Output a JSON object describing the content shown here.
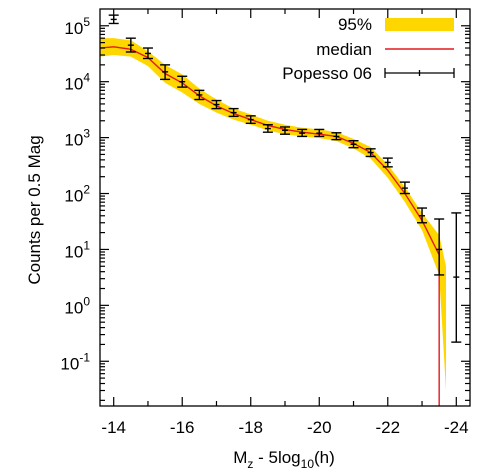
{
  "chart_data": {
    "type": "line",
    "xlabel": {
      "main": "M",
      "sub1": "z",
      "mid": " - 5log",
      "sub2": "10",
      "end": "(h)"
    },
    "ylabel": "Counts per 0.5 Mag",
    "xlim": [
      -13.6,
      -24.4
    ],
    "ylim_log10": [
      -1.8,
      5.3
    ],
    "y_scale": "log",
    "x_ticks": [
      -14,
      -16,
      -18,
      -20,
      -22,
      -24
    ],
    "x_tick_labels": [
      "-14",
      "-16",
      "-18",
      "-20",
      "-22",
      "-24"
    ],
    "y_ticks_exp": [
      -1,
      0,
      1,
      2,
      3,
      4,
      5
    ],
    "y_tick_labels": [
      {
        "base": "10",
        "exp": "-1"
      },
      {
        "base": "10",
        "exp": "0"
      },
      {
        "base": "10",
        "exp": "1"
      },
      {
        "base": "10",
        "exp": "2"
      },
      {
        "base": "10",
        "exp": "3"
      },
      {
        "base": "10",
        "exp": "4"
      },
      {
        "base": "10",
        "exp": "5"
      }
    ],
    "legend": {
      "placement": "top-right",
      "entries": [
        {
          "key": "band",
          "label": "95%"
        },
        {
          "key": "median",
          "label": "median"
        },
        {
          "key": "popesso",
          "label": "Popesso 06"
        }
      ]
    },
    "colors": {
      "band": "#FFD700",
      "median": "#E31A1C",
      "points": "#000000"
    },
    "band": {
      "x": [
        -13.6,
        -14.0,
        -14.5,
        -15.0,
        -15.5,
        -16.0,
        -16.5,
        -17.0,
        -17.5,
        -18.0,
        -18.5,
        -19.0,
        -19.5,
        -20.0,
        -20.5,
        -21.0,
        -21.5,
        -22.0,
        -22.5,
        -23.0,
        -23.5,
        -23.7
      ],
      "upper": [
        60000,
        60000,
        55000,
        35000,
        20000,
        13500,
        7500,
        4800,
        3300,
        2600,
        2000,
        1700,
        1500,
        1400,
        1250,
        950,
        680,
        330,
        130,
        45,
        18,
        5
      ],
      "lower": [
        28000,
        30000,
        28000,
        19000,
        9500,
        6400,
        4000,
        2800,
        2100,
        1700,
        1350,
        1150,
        1050,
        980,
        870,
        640,
        420,
        190,
        70,
        22,
        3.5,
        0.03
      ]
    },
    "median": {
      "x": [
        -13.6,
        -14.0,
        -14.5,
        -15.0,
        -15.5,
        -16.0,
        -16.5,
        -17.0,
        -17.5,
        -18.0,
        -18.5,
        -19.0,
        -19.5,
        -20.0,
        -20.5,
        -21.0,
        -21.5,
        -22.0,
        -22.5,
        -23.0,
        -23.5,
        -23.5
      ],
      "y": [
        40000,
        42000,
        38000,
        27000,
        14000,
        9500,
        5600,
        3700,
        2700,
        2100,
        1650,
        1400,
        1250,
        1150,
        1050,
        790,
        540,
        260,
        100,
        33,
        8,
        0.016
      ]
    },
    "points": [
      {
        "x": -14.0,
        "y": 130000,
        "ylo": 110000,
        "yhi": 155000
      },
      {
        "x": -14.5,
        "y": 45000,
        "ylo": 34000,
        "yhi": 60000
      },
      {
        "x": -15.0,
        "y": 32000,
        "ylo": 26000,
        "yhi": 40000
      },
      {
        "x": -15.5,
        "y": 15000,
        "ylo": 11000,
        "yhi": 20000
      },
      {
        "x": -16.0,
        "y": 10000,
        "ylo": 8000,
        "yhi": 12500
      },
      {
        "x": -16.5,
        "y": 5800,
        "ylo": 4800,
        "yhi": 7000
      },
      {
        "x": -17.0,
        "y": 3900,
        "ylo": 3300,
        "yhi": 4600
      },
      {
        "x": -17.5,
        "y": 2800,
        "ylo": 2400,
        "yhi": 3300
      },
      {
        "x": -18.0,
        "y": 2100,
        "ylo": 1800,
        "yhi": 2450
      },
      {
        "x": -18.5,
        "y": 1450,
        "ylo": 1250,
        "yhi": 1700
      },
      {
        "x": -19.0,
        "y": 1350,
        "ylo": 1150,
        "yhi": 1550
      },
      {
        "x": -19.5,
        "y": 1200,
        "ylo": 1050,
        "yhi": 1400
      },
      {
        "x": -20.0,
        "y": 1200,
        "ylo": 1050,
        "yhi": 1400
      },
      {
        "x": -20.5,
        "y": 1050,
        "ylo": 920,
        "yhi": 1220
      },
      {
        "x": -21.0,
        "y": 760,
        "ylo": 660,
        "yhi": 880
      },
      {
        "x": -21.5,
        "y": 540,
        "ylo": 460,
        "yhi": 630
      },
      {
        "x": -22.0,
        "y": 360,
        "ylo": 300,
        "yhi": 430
      },
      {
        "x": -22.5,
        "y": 125,
        "ylo": 100,
        "yhi": 160
      },
      {
        "x": -23.0,
        "y": 40,
        "ylo": 30,
        "yhi": 55
      },
      {
        "x": -23.5,
        "y": 10,
        "ylo": 3.5,
        "yhi": 35
      },
      {
        "x": -24.0,
        "y": 3.2,
        "ylo": 0.22,
        "yhi": 45
      }
    ]
  }
}
